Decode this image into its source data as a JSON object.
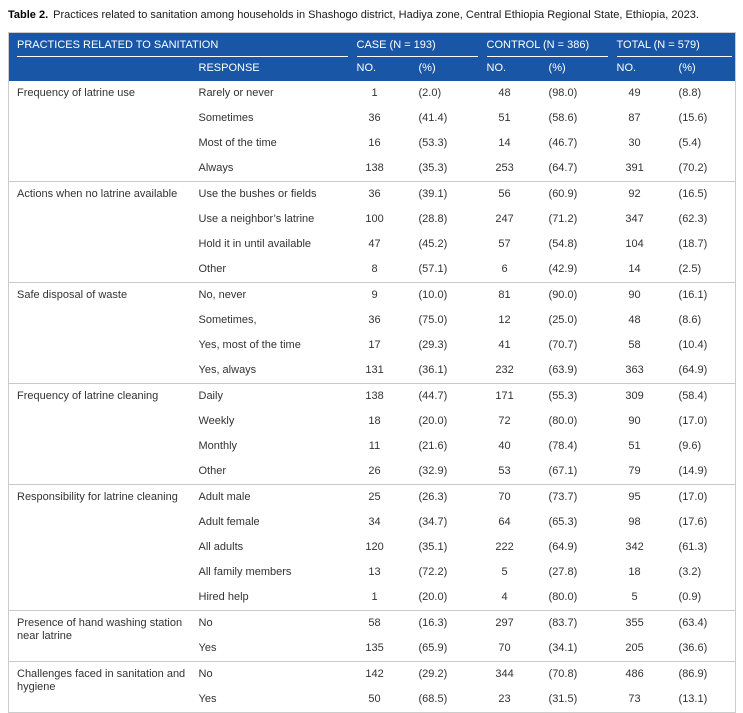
{
  "caption": {
    "label": "Table 2.",
    "text": "Practices related to sanitation among households in Shashogo district, Hadiya zone, Central Ethiopia Regional State, Ethiopia, 2023."
  },
  "colors": {
    "header_bg": "#1957a6",
    "header_text": "#ffffff",
    "body_text": "#333333",
    "section_divider": "#c9c9c9",
    "table_border": "#cccccc"
  },
  "header": {
    "practices_label": "PRACTICES RELATED TO SANITATION",
    "case_label": "CASE (N = 193)",
    "control_label": "CONTROL (N = 386)",
    "total_label": "TOTAL (N = 579)",
    "response_label": "RESPONSE",
    "no_label": "NO.",
    "pct_label": "(%)"
  },
  "sections": [
    {
      "practice": "Frequency of latrine use",
      "rows": [
        {
          "response": "Rarely or never",
          "case_no": "1",
          "case_pct": "(2.0)",
          "control_no": "48",
          "control_pct": "(98.0)",
          "total_no": "49",
          "total_pct": "(8.8)"
        },
        {
          "response": "Sometimes",
          "case_no": "36",
          "case_pct": "(41.4)",
          "control_no": "51",
          "control_pct": "(58.6)",
          "total_no": "87",
          "total_pct": "(15.6)"
        },
        {
          "response": "Most of the time",
          "case_no": "16",
          "case_pct": "(53.3)",
          "control_no": "14",
          "control_pct": "(46.7)",
          "total_no": "30",
          "total_pct": "(5.4)"
        },
        {
          "response": "Always",
          "case_no": "138",
          "case_pct": "(35.3)",
          "control_no": "253",
          "control_pct": "(64.7)",
          "total_no": "391",
          "total_pct": "(70.2)"
        }
      ]
    },
    {
      "practice": "Actions when no latrine available",
      "rows": [
        {
          "response": "Use the bushes or fields",
          "case_no": "36",
          "case_pct": "(39.1)",
          "control_no": "56",
          "control_pct": "(60.9)",
          "total_no": "92",
          "total_pct": "(16.5)"
        },
        {
          "response": "Use a neighbor’s latrine",
          "case_no": "100",
          "case_pct": "(28.8)",
          "control_no": "247",
          "control_pct": "(71.2)",
          "total_no": "347",
          "total_pct": "(62.3)"
        },
        {
          "response": "Hold it in until available",
          "case_no": "47",
          "case_pct": "(45.2)",
          "control_no": "57",
          "control_pct": "(54.8)",
          "total_no": "104",
          "total_pct": "(18.7)"
        },
        {
          "response": "Other",
          "case_no": "8",
          "case_pct": "(57.1)",
          "control_no": "6",
          "control_pct": "(42.9)",
          "total_no": "14",
          "total_pct": "(2.5)"
        }
      ]
    },
    {
      "practice": "Safe disposal of waste",
      "rows": [
        {
          "response": "No, never",
          "case_no": "9",
          "case_pct": "(10.0)",
          "control_no": "81",
          "control_pct": "(90.0)",
          "total_no": "90",
          "total_pct": "(16.1)"
        },
        {
          "response": "Sometimes,",
          "case_no": "36",
          "case_pct": "(75.0)",
          "control_no": "12",
          "control_pct": "(25.0)",
          "total_no": "48",
          "total_pct": "(8.6)"
        },
        {
          "response": "Yes, most of the time",
          "case_no": "17",
          "case_pct": "(29.3)",
          "control_no": "41",
          "control_pct": "(70.7)",
          "total_no": "58",
          "total_pct": "(10.4)"
        },
        {
          "response": "Yes, always",
          "case_no": "131",
          "case_pct": "(36.1)",
          "control_no": "232",
          "control_pct": "(63.9)",
          "total_no": "363",
          "total_pct": "(64.9)"
        }
      ]
    },
    {
      "practice": "Frequency of latrine cleaning",
      "rows": [
        {
          "response": "Daily",
          "case_no": "138",
          "case_pct": "(44.7)",
          "control_no": "171",
          "control_pct": "(55.3)",
          "total_no": "309",
          "total_pct": "(58.4)"
        },
        {
          "response": "Weekly",
          "case_no": "18",
          "case_pct": "(20.0)",
          "control_no": "72",
          "control_pct": "(80.0)",
          "total_no": "90",
          "total_pct": "(17.0)"
        },
        {
          "response": "Monthly",
          "case_no": "11",
          "case_pct": "(21.6)",
          "control_no": "40",
          "control_pct": "(78.4)",
          "total_no": "51",
          "total_pct": "(9.6)"
        },
        {
          "response": "Other",
          "case_no": "26",
          "case_pct": "(32.9)",
          "control_no": "53",
          "control_pct": "(67.1)",
          "total_no": "79",
          "total_pct": "(14.9)"
        }
      ]
    },
    {
      "practice": "Responsibility for latrine cleaning",
      "rows": [
        {
          "response": "Adult male",
          "case_no": "25",
          "case_pct": "(26.3)",
          "control_no": "70",
          "control_pct": "(73.7)",
          "total_no": "95",
          "total_pct": "(17.0)"
        },
        {
          "response": "Adult female",
          "case_no": "34",
          "case_pct": "(34.7)",
          "control_no": "64",
          "control_pct": "(65.3)",
          "total_no": "98",
          "total_pct": "(17.6)"
        },
        {
          "response": "All adults",
          "case_no": "120",
          "case_pct": "(35.1)",
          "control_no": "222",
          "control_pct": "(64.9)",
          "total_no": "342",
          "total_pct": "(61.3)"
        },
        {
          "response": "All family members",
          "case_no": "13",
          "case_pct": "(72.2)",
          "control_no": "5",
          "control_pct": "(27.8)",
          "total_no": "18",
          "total_pct": "(3.2)"
        },
        {
          "response": "Hired help",
          "case_no": "1",
          "case_pct": "(20.0)",
          "control_no": "4",
          "control_pct": "(80.0)",
          "total_no": "5",
          "total_pct": "(0.9)"
        }
      ]
    },
    {
      "practice": "Presence of hand washing station near latrine",
      "rows": [
        {
          "response": "No",
          "case_no": "58",
          "case_pct": "(16.3)",
          "control_no": "297",
          "control_pct": "(83.7)",
          "total_no": "355",
          "total_pct": "(63.4)"
        },
        {
          "response": "Yes",
          "case_no": "135",
          "case_pct": "(65.9)",
          "control_no": "70",
          "control_pct": "(34.1)",
          "total_no": "205",
          "total_pct": "(36.6)"
        }
      ]
    },
    {
      "practice": "Challenges faced in sanitation and hygiene",
      "rows": [
        {
          "response": "No",
          "case_no": "142",
          "case_pct": "(29.2)",
          "control_no": "344",
          "control_pct": "(70.8)",
          "total_no": "486",
          "total_pct": "(86.9)"
        },
        {
          "response": "Yes",
          "case_no": "50",
          "case_pct": "(68.5)",
          "control_no": "23",
          "control_pct": "(31.5)",
          "total_no": "73",
          "total_pct": "(13.1)"
        }
      ]
    }
  ]
}
